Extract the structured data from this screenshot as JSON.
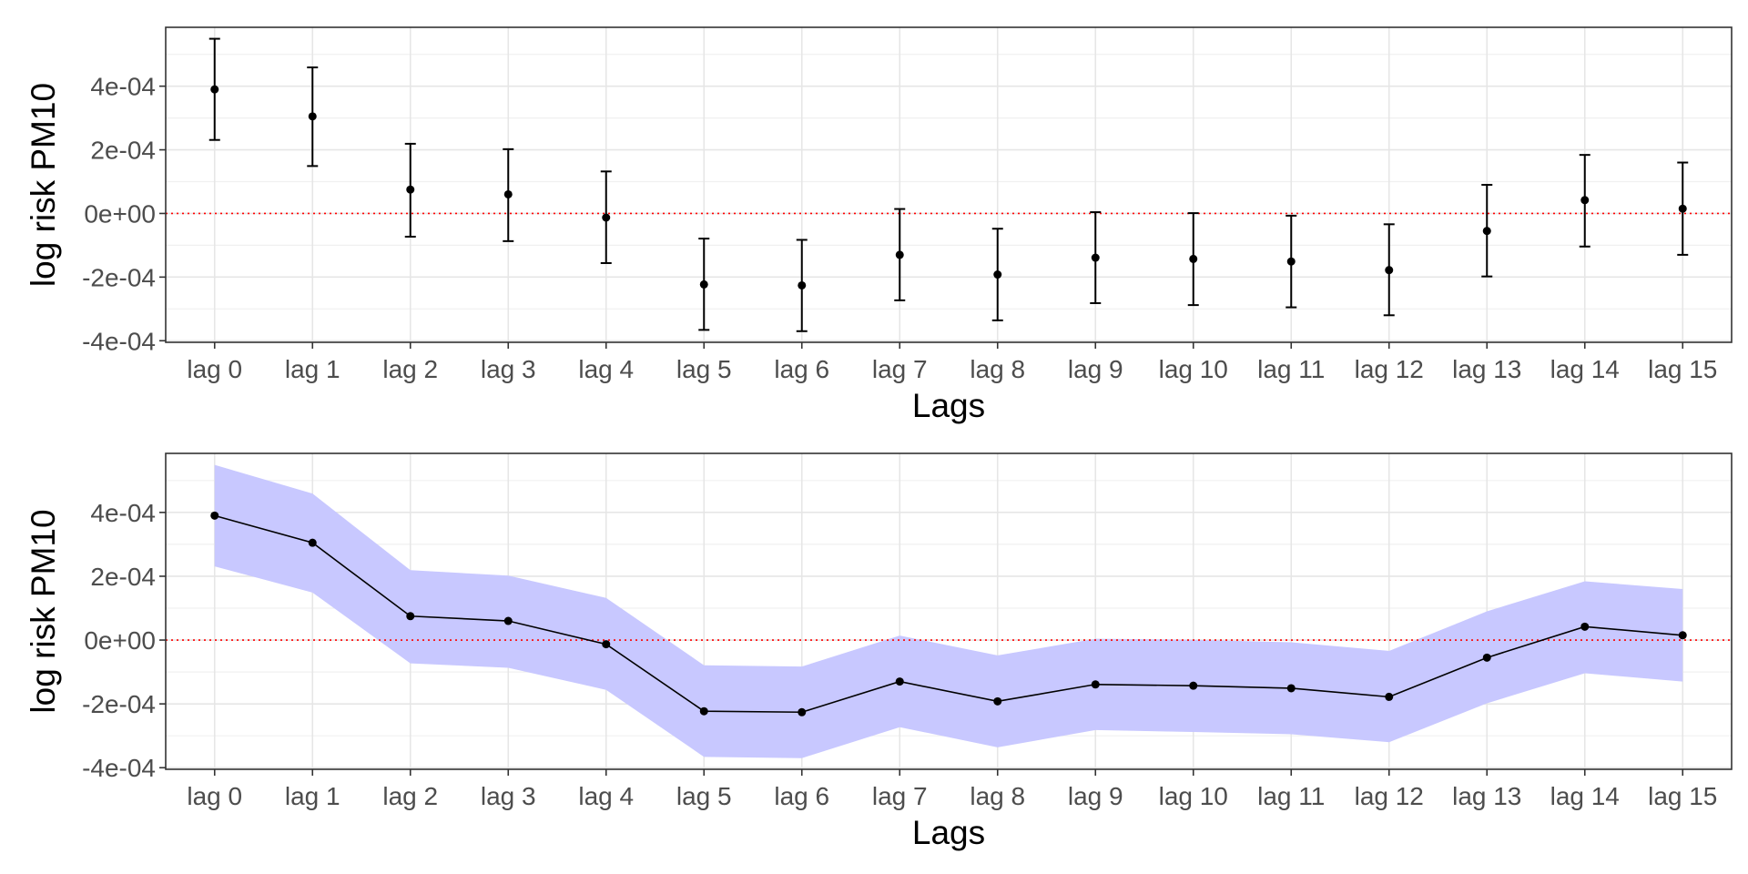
{
  "chart_data": [
    {
      "type": "scatter",
      "style": "point-errorbar",
      "xlabel": "Lags",
      "ylabel": "log risk PM10",
      "categories": [
        "lag 0",
        "lag 1",
        "lag 2",
        "lag 3",
        "lag 4",
        "lag 5",
        "lag 6",
        "lag 7",
        "lag 8",
        "lag 9",
        "lag 10",
        "lag 11",
        "lag 12",
        "lag 13",
        "lag 14",
        "lag 15"
      ],
      "estimate": [
        0.00039,
        0.000305,
        7.5e-05,
        6e-05,
        -1.3e-05,
        -0.000223,
        -0.000226,
        -0.00013,
        -0.000192,
        -0.000139,
        -0.000143,
        -0.000151,
        -0.000178,
        -5.5e-05,
        4.2e-05,
        1.5e-05
      ],
      "lower": [
        0.000231,
        0.000149,
        -7.3e-05,
        -8.7e-05,
        -0.000156,
        -0.000366,
        -0.00037,
        -0.000273,
        -0.000336,
        -0.000282,
        -0.000288,
        -0.000295,
        -0.00032,
        -0.000198,
        -0.000104,
        -0.00013
      ],
      "upper": [
        0.000549,
        0.000459,
        0.000219,
        0.000202,
        0.000132,
        -7.9e-05,
        -8.3e-05,
        1.4e-05,
        -4.8e-05,
        4e-06,
        1e-06,
        -7e-06,
        -3.4e-05,
        9e-05,
        0.000184,
        0.00016
      ],
      "ylim": [
        -0.000405,
        0.000585
      ],
      "yticks": [
        -0.0004,
        -0.0002,
        0,
        0.0002,
        0.0004
      ],
      "ytick_labels": [
        "-4e-04",
        "-2e-04",
        "0e+00",
        "2e-04",
        "4e-04"
      ],
      "reference_line": {
        "y": 0,
        "color": "#ff0000",
        "style": "dotted"
      },
      "grid": true,
      "colors": {
        "point": "#000000",
        "errorbar": "#000000"
      }
    },
    {
      "type": "area",
      "style": "line-ribbon",
      "xlabel": "Lags",
      "ylabel": "log risk PM10",
      "categories": [
        "lag 0",
        "lag 1",
        "lag 2",
        "lag 3",
        "lag 4",
        "lag 5",
        "lag 6",
        "lag 7",
        "lag 8",
        "lag 9",
        "lag 10",
        "lag 11",
        "lag 12",
        "lag 13",
        "lag 14",
        "lag 15"
      ],
      "estimate": [
        0.00039,
        0.000305,
        7.5e-05,
        6e-05,
        -1.3e-05,
        -0.000223,
        -0.000226,
        -0.00013,
        -0.000192,
        -0.000139,
        -0.000143,
        -0.000151,
        -0.000178,
        -5.5e-05,
        4.2e-05,
        1.5e-05
      ],
      "lower": [
        0.000231,
        0.000149,
        -7.3e-05,
        -8.7e-05,
        -0.000156,
        -0.000366,
        -0.00037,
        -0.000273,
        -0.000336,
        -0.000282,
        -0.000288,
        -0.000295,
        -0.00032,
        -0.000198,
        -0.000104,
        -0.00013
      ],
      "upper": [
        0.000549,
        0.000459,
        0.000219,
        0.000202,
        0.000132,
        -7.9e-05,
        -8.3e-05,
        1.4e-05,
        -4.8e-05,
        4e-06,
        1e-06,
        -7e-06,
        -3.4e-05,
        9e-05,
        0.000184,
        0.00016
      ],
      "ylim": [
        -0.000405,
        0.000585
      ],
      "yticks": [
        -0.0004,
        -0.0002,
        0,
        0.0002,
        0.0004
      ],
      "ytick_labels": [
        "-4e-04",
        "-2e-04",
        "0e+00",
        "2e-04",
        "4e-04"
      ],
      "reference_line": {
        "y": 0,
        "color": "#ff0000",
        "style": "dotted"
      },
      "grid": true,
      "colors": {
        "line": "#000000",
        "point": "#000000",
        "ribbon": "#c8c8ff"
      }
    }
  ]
}
